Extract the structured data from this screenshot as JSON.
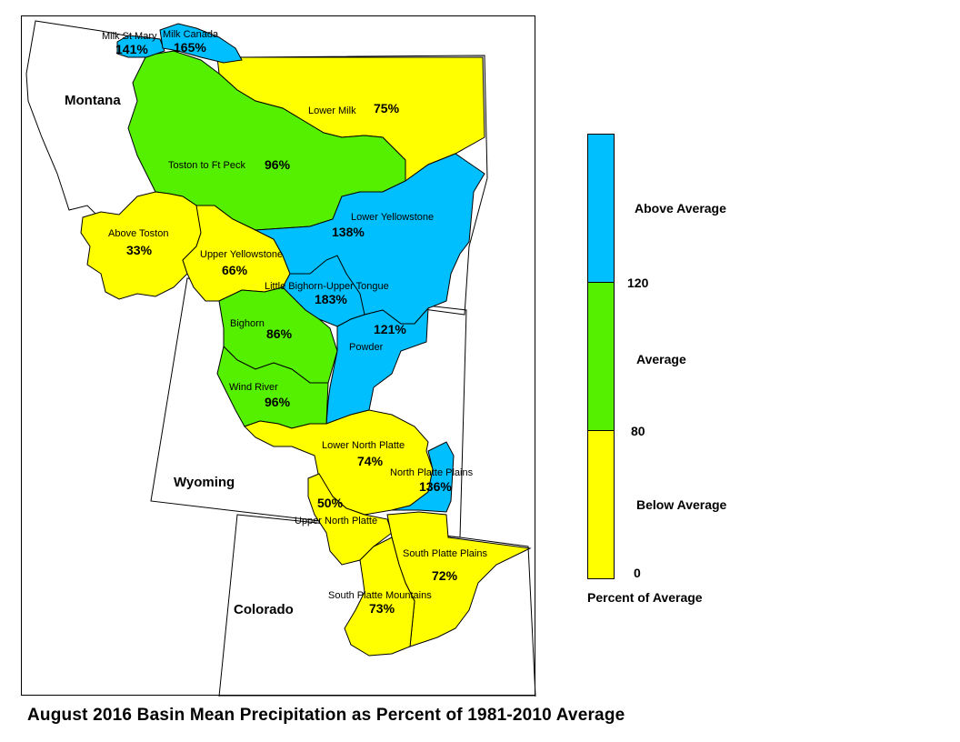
{
  "title": "August 2016 Basin Mean Precipitation as Percent of 1981-2010 Average",
  "colors": {
    "above": "#00BFFF",
    "average": "#55F000",
    "below": "#FFFF00"
  },
  "states": {
    "montana": "Montana",
    "wyoming": "Wyoming",
    "colorado": "Colorado"
  },
  "basins": {
    "milk_st_mary": {
      "name": "Milk St Mary",
      "pct": "141%",
      "category": "above"
    },
    "milk_canada": {
      "name": "Milk Canada",
      "pct": "165%",
      "category": "above"
    },
    "lower_milk": {
      "name": "Lower Milk",
      "pct": "75%",
      "category": "below"
    },
    "toston_ft_peck": {
      "name": "Toston to Ft Peck",
      "pct": "96%",
      "category": "average"
    },
    "above_toston": {
      "name": "Above Toston",
      "pct": "33%",
      "category": "below"
    },
    "upper_yellowstone": {
      "name": "Upper Yellowstone",
      "pct": "66%",
      "category": "below"
    },
    "lower_yellowstone": {
      "name": "Lower Yellowstone",
      "pct": "138%",
      "category": "above"
    },
    "little_bighorn_upper_tongue": {
      "name": "Little Bighorn-Upper Tongue",
      "pct": "183%",
      "category": "above"
    },
    "bighorn": {
      "name": "Bighorn",
      "pct": "86%",
      "category": "average"
    },
    "powder": {
      "name": "Powder",
      "pct": "121%",
      "category": "above"
    },
    "wind_river": {
      "name": "Wind River",
      "pct": "96%",
      "category": "average"
    },
    "lower_north_platte": {
      "name": "Lower North Platte",
      "pct": "74%",
      "category": "below"
    },
    "north_platte_plains": {
      "name": "North Platte Plains",
      "pct": "136%",
      "category": "above"
    },
    "upper_north_platte": {
      "name": "Upper North Platte",
      "pct": "50%",
      "category": "below"
    },
    "south_platte_plains": {
      "name": "South Platte Plains",
      "pct": "72%",
      "category": "below"
    },
    "south_platte_mountains": {
      "name": "South Platte Mountains",
      "pct": "73%",
      "category": "below"
    }
  },
  "legend": {
    "title": "Percent of Average",
    "above_label": "Above Average",
    "average_label": "Average",
    "below_label": "Below Average",
    "break_120": "120",
    "break_80": "80",
    "break_0": "0"
  }
}
